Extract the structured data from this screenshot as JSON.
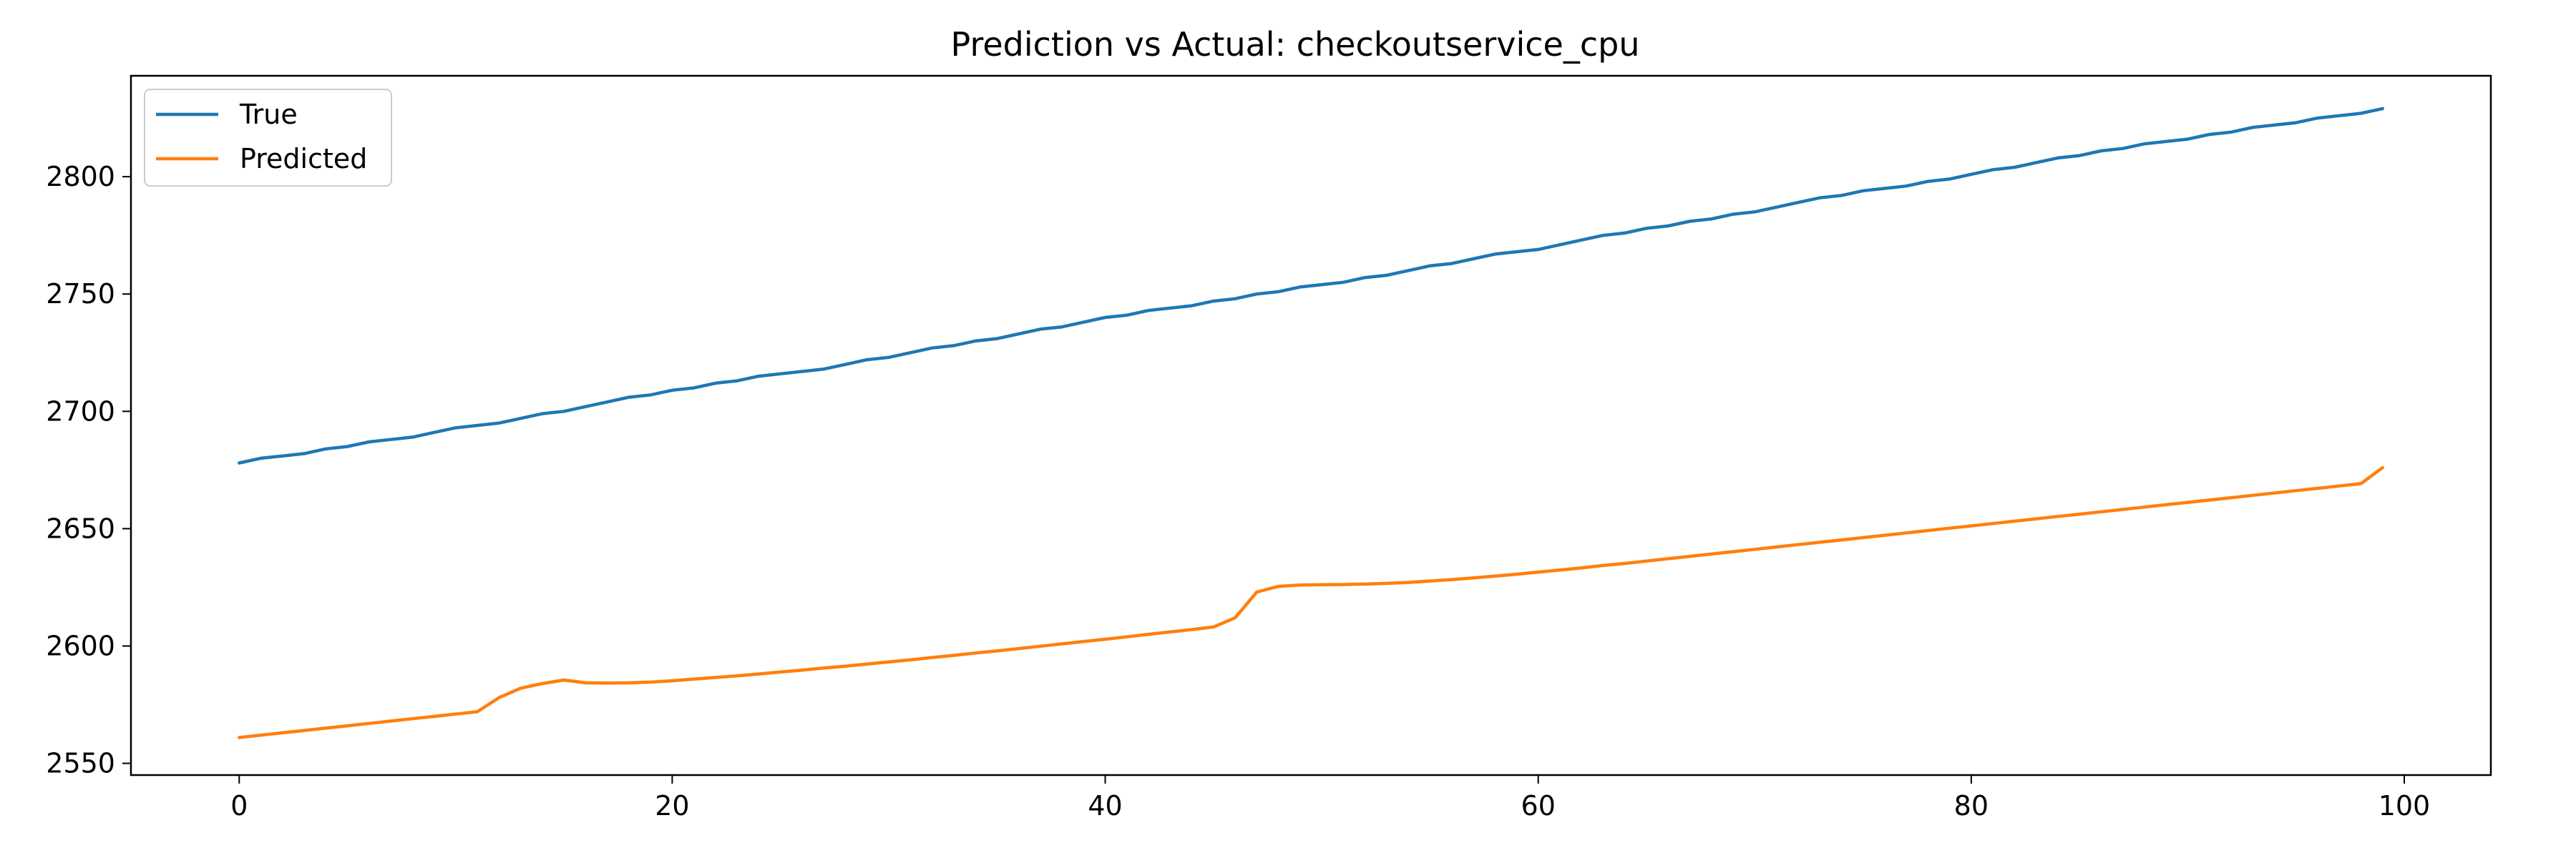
{
  "chart_data": {
    "type": "line",
    "title": "Prediction vs Actual: checkoutservice_cpu",
    "xlabel": "",
    "ylabel": "",
    "xlim": [
      -5,
      104
    ],
    "ylim": [
      2545,
      2843
    ],
    "x_ticks": [
      0,
      20,
      40,
      60,
      80,
      100
    ],
    "y_ticks": [
      2550,
      2600,
      2650,
      2700,
      2750,
      2800
    ],
    "grid": false,
    "legend_position": "top-left",
    "series": [
      {
        "name": "True",
        "color": "#1f77b4",
        "x": [
          0,
          1,
          2,
          3,
          4,
          5,
          6,
          7,
          8,
          9,
          10,
          11,
          12,
          13,
          14,
          15,
          16,
          17,
          18,
          19,
          20,
          21,
          22,
          23,
          24,
          25,
          26,
          27,
          28,
          29,
          30,
          31,
          32,
          33,
          34,
          35,
          36,
          37,
          38,
          39,
          40,
          41,
          42,
          43,
          44,
          45,
          46,
          47,
          48,
          49,
          50,
          51,
          52,
          53,
          54,
          55,
          56,
          57,
          58,
          59,
          60,
          61,
          62,
          63,
          64,
          65,
          66,
          67,
          68,
          69,
          70,
          71,
          72,
          73,
          74,
          75,
          76,
          77,
          78,
          79,
          80,
          81,
          82,
          83,
          84,
          85,
          86,
          87,
          88,
          89,
          90,
          91,
          92,
          93,
          94,
          95,
          96,
          97,
          98,
          99
        ],
        "values": [
          2678.0,
          2680.0,
          2681.0,
          2682.0,
          2684.0,
          2685.0,
          2687.0,
          2688.0,
          2689.0,
          2691.0,
          2693.0,
          2694.0,
          2695.0,
          2697.0,
          2699.0,
          2700.0,
          2702.0,
          2704.0,
          2706.0,
          2707.0,
          2709.0,
          2710.0,
          2712.0,
          2713.0,
          2715.0,
          2716.0,
          2717.0,
          2718.0,
          2720.0,
          2722.0,
          2723.0,
          2725.0,
          2727.0,
          2728.0,
          2730.0,
          2731.0,
          2733.0,
          2735.0,
          2736.0,
          2738.0,
          2740.0,
          2741.0,
          2743.0,
          2744.0,
          2745.0,
          2747.0,
          2748.0,
          2750.0,
          2751.0,
          2753.0,
          2754.0,
          2755.0,
          2757.0,
          2758.0,
          2760.0,
          2762.0,
          2763.0,
          2765.0,
          2767.0,
          2768.0,
          2769.0,
          2771.0,
          2773.0,
          2775.0,
          2776.0,
          2778.0,
          2779.0,
          2781.0,
          2782.0,
          2784.0,
          2785.0,
          2787.0,
          2789.0,
          2791.0,
          2792.0,
          2794.0,
          2795.0,
          2796.0,
          2798.0,
          2799.0,
          2801.0,
          2803.0,
          2804.0,
          2806.0,
          2808.0,
          2809.0,
          2811.0,
          2812.0,
          2814.0,
          2815.0,
          2816.0,
          2818.0,
          2819.0,
          2821.0,
          2822.0,
          2823.0,
          2825.0,
          2826.0,
          2827.0,
          2829.0
        ]
      },
      {
        "name": "Predicted",
        "color": "#ff7f0e",
        "x": [
          0,
          1,
          2,
          3,
          4,
          5,
          6,
          7,
          8,
          9,
          10,
          11,
          12,
          13,
          14,
          15,
          16,
          17,
          18,
          19,
          20,
          21,
          22,
          23,
          24,
          25,
          26,
          27,
          28,
          29,
          30,
          31,
          32,
          33,
          34,
          35,
          36,
          37,
          38,
          39,
          40,
          41,
          42,
          43,
          44,
          45,
          46,
          47,
          48,
          49,
          50,
          51,
          52,
          53,
          54,
          55,
          56,
          57,
          58,
          59,
          60,
          61,
          62,
          63,
          64,
          65,
          66,
          67,
          68,
          69,
          70,
          71,
          72,
          73,
          74,
          75,
          76,
          77,
          78,
          79,
          80,
          81,
          82,
          83,
          84,
          85,
          86,
          87,
          88,
          89,
          90,
          91,
          92,
          93,
          94,
          95,
          96,
          97,
          98,
          99
        ],
        "values": [
          2561.0,
          2562.0,
          2563.0,
          2564.0,
          2565.0,
          2566.0,
          2567.0,
          2568.0,
          2569.0,
          2570.0,
          2571.0,
          2572.0,
          2578.0,
          2582.0,
          2584.0,
          2585.5,
          2584.3,
          2584.2,
          2584.3,
          2584.6,
          2585.2,
          2585.9,
          2586.6,
          2587.3,
          2588.1,
          2588.9,
          2589.7,
          2590.6,
          2591.4,
          2592.3,
          2593.2,
          2594.1,
          2595.1,
          2596.0,
          2597.0,
          2597.9,
          2598.9,
          2599.9,
          2600.9,
          2601.9,
          2602.9,
          2603.9,
          2605.0,
          2606.0,
          2607.0,
          2608.1,
          2612.0,
          2623.0,
          2625.4,
          2626.0,
          2626.1,
          2626.2,
          2626.4,
          2626.7,
          2627.1,
          2627.7,
          2628.3,
          2629.0,
          2629.8,
          2630.6,
          2631.5,
          2632.4,
          2633.3,
          2634.3,
          2635.2,
          2636.2,
          2637.2,
          2638.2,
          2639.2,
          2640.2,
          2641.2,
          2642.2,
          2643.2,
          2644.2,
          2645.2,
          2646.2,
          2647.2,
          2648.2,
          2649.2,
          2650.2,
          2651.2,
          2652.2,
          2653.2,
          2654.2,
          2655.2,
          2656.2,
          2657.2,
          2658.2,
          2659.2,
          2660.2,
          2661.2,
          2662.2,
          2663.2,
          2664.2,
          2665.2,
          2666.2,
          2667.2,
          2668.2,
          2669.2,
          2676.0
        ]
      }
    ]
  }
}
